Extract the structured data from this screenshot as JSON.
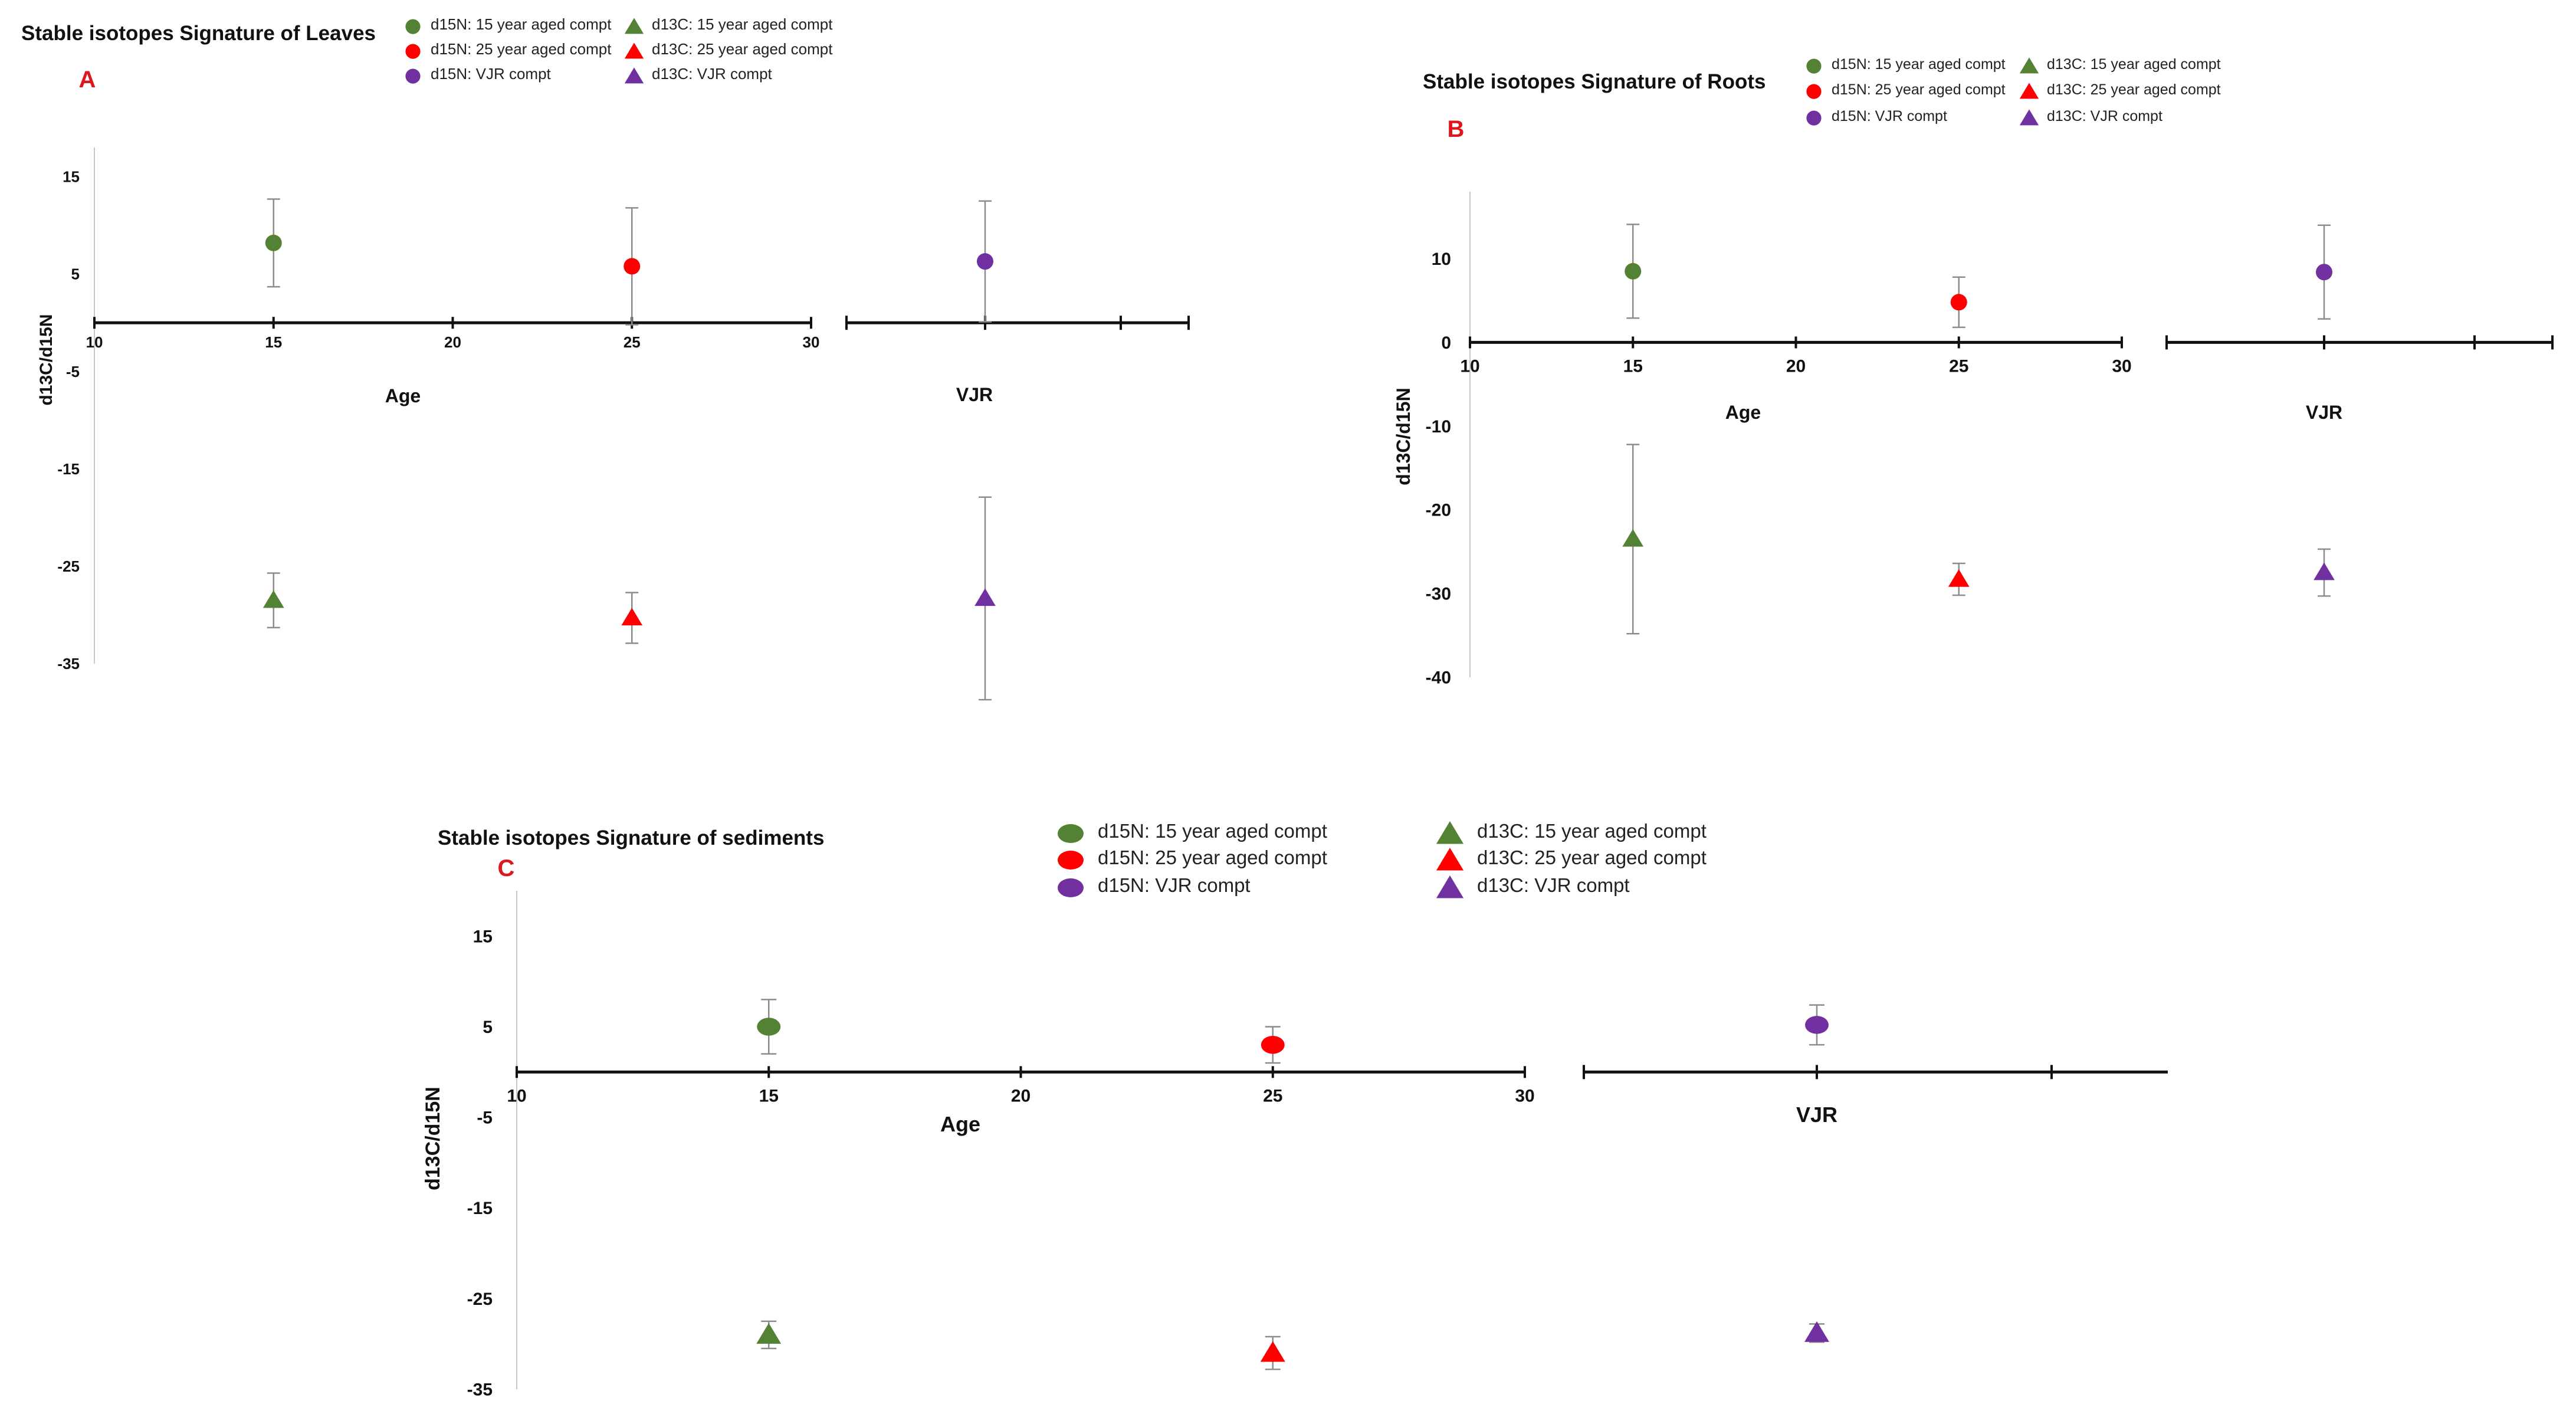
{
  "figure": {
    "description_label": ""
  },
  "chart_data": [
    {
      "id": "A",
      "type": "scatter",
      "panel_letter": "A",
      "title": "Stable isotopes Signature of Leaves",
      "xlabel": "Age",
      "xlabel2": "VJR",
      "ylabel": "d13C/d15N",
      "ylim": [
        -35,
        18
      ],
      "yticks": [
        15,
        5,
        -5,
        -15,
        -25,
        -35
      ],
      "xlim": [
        10,
        30
      ],
      "xticks": [
        10,
        15,
        20,
        25,
        30
      ],
      "series": [
        {
          "name": "d15N: 15 year aged compt",
          "marker": "circle",
          "color": "#548235",
          "x": 15,
          "y": 8.2,
          "err": 4.5
        },
        {
          "name": "d15N: 25 year aged compt",
          "marker": "circle",
          "color": "#ff0000",
          "x": 25,
          "y": 5.8,
          "err": 6.0
        },
        {
          "name": "d15N: VJR compt",
          "marker": "circle",
          "color": "#7030a0",
          "x": "VJR",
          "y": 6.3,
          "err": 6.2
        },
        {
          "name": "d13C: 15 year aged compt",
          "marker": "triangle",
          "color": "#548235",
          "x": 15,
          "y": -28.5,
          "err": 2.8
        },
        {
          "name": "d13C: 25 year aged compt",
          "marker": "triangle",
          "color": "#ff0000",
          "x": 25,
          "y": -30.3,
          "err": 2.6
        },
        {
          "name": "d13C: VJR compt",
          "marker": "triangle",
          "color": "#7030a0",
          "x": "VJR",
          "y": -28.3,
          "err": 10.4
        }
      ]
    },
    {
      "id": "B",
      "type": "scatter",
      "panel_letter": "B",
      "title": "Stable isotopes Signature of Roots",
      "xlabel": "Age",
      "xlabel2": "VJR",
      "ylabel": "d13C/d15N",
      "ylim": [
        -40,
        18
      ],
      "yticks": [
        10,
        0,
        -10,
        -20,
        -30,
        -40
      ],
      "xlim": [
        10,
        30
      ],
      "xticks": [
        10,
        15,
        20,
        25,
        30
      ],
      "series": [
        {
          "name": "d15N: 15 year aged compt",
          "marker": "circle",
          "color": "#548235",
          "x": 15,
          "y": 8.5,
          "err": 5.6
        },
        {
          "name": "d15N: 25 year aged compt",
          "marker": "circle",
          "color": "#ff0000",
          "x": 25,
          "y": 4.8,
          "err": 3.0
        },
        {
          "name": "d15N: VJR compt",
          "marker": "circle",
          "color": "#7030a0",
          "x": "VJR",
          "y": 8.4,
          "err": 5.6
        },
        {
          "name": "d13C: 15 year aged compt",
          "marker": "triangle",
          "color": "#548235",
          "x": 15,
          "y": -23.5,
          "err": 11.3
        },
        {
          "name": "d13C: 25 year aged compt",
          "marker": "triangle",
          "color": "#ff0000",
          "x": 25,
          "y": -28.3,
          "err": 1.9
        },
        {
          "name": "d13C: VJR compt",
          "marker": "triangle",
          "color": "#7030a0",
          "x": "VJR",
          "y": -27.5,
          "err": 2.8
        }
      ]
    },
    {
      "id": "C",
      "type": "scatter",
      "panel_letter": "C",
      "title": "Stable isotopes Signature of sediments",
      "xlabel": "Age",
      "xlabel2": "VJR",
      "ylabel": "d13C/d15N",
      "ylim": [
        -35,
        20
      ],
      "yticks": [
        15,
        5,
        -5,
        -15,
        -25,
        -35
      ],
      "xlim": [
        10,
        30
      ],
      "xticks": [
        10,
        15,
        20,
        25,
        30
      ],
      "series": [
        {
          "name": "d15N: 15 year aged compt",
          "marker": "ellipse",
          "color": "#548235",
          "x": 15,
          "y": 5.0,
          "err": 3.0
        },
        {
          "name": "d15N: 25 year aged compt",
          "marker": "ellipse",
          "color": "#ff0000",
          "x": 25,
          "y": 3.0,
          "err": 2.0
        },
        {
          "name": "d15N: VJR compt",
          "marker": "ellipse",
          "color": "#7030a0",
          "x": "VJR",
          "y": 5.2,
          "err": 2.2
        },
        {
          "name": "d13C: 15 year aged compt",
          "marker": "triangle",
          "color": "#548235",
          "x": 15,
          "y": -29.0,
          "err": 1.5
        },
        {
          "name": "d13C: 25 year aged compt",
          "marker": "triangle",
          "color": "#ff0000",
          "x": 25,
          "y": -31.0,
          "err": 1.8
        },
        {
          "name": "d13C: VJR compt",
          "marker": "triangle",
          "color": "#7030a0",
          "x": "VJR",
          "y": -28.8,
          "err": 1.0
        }
      ]
    }
  ]
}
